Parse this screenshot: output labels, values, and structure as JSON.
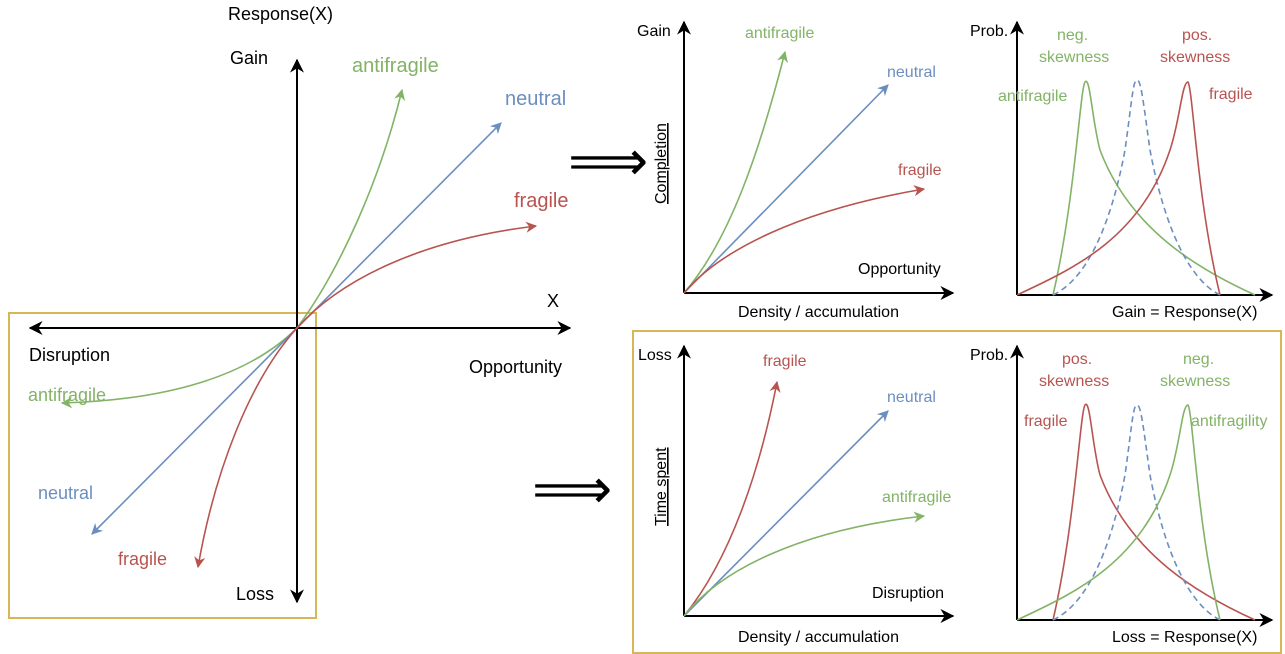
{
  "colors": {
    "antifragile": "#82b366",
    "neutral": "#6c8ebf",
    "fragile": "#b85450",
    "box": "#d6b656",
    "axis": "#000000"
  },
  "main_plot": {
    "y_title": "Response(X)",
    "gain": "Gain",
    "loss": "Loss",
    "x_axis": "X",
    "opportunity": "Opportunity",
    "disruption": "Disruption",
    "upper_labels": {
      "antifragile": "antifragile",
      "neutral": "neutral",
      "fragile": "fragile"
    },
    "lower_labels": {
      "antifragile": "antifragile",
      "neutral": "neutral",
      "fragile": "fragile"
    }
  },
  "implies_symbol": "⟹",
  "top_left_panel": {
    "y_axis": "Gain",
    "y_title": "Completion",
    "x_axis": "Density / accumulation",
    "regime": "Opportunity",
    "labels": {
      "antifragile": "antifragile",
      "neutral": "neutral",
      "fragile": "fragile"
    }
  },
  "top_right_panel": {
    "y_axis": "Prob.",
    "x_axis": "Gain = Response(X)",
    "neg_skew": [
      "neg.",
      "skewness"
    ],
    "pos_skew": [
      "pos.",
      "skewness"
    ],
    "left_label": "antifragile",
    "right_label": "fragile"
  },
  "bottom_left_panel": {
    "y_axis": "Loss",
    "y_title": "Time spent",
    "x_axis": "Density / accumulation",
    "regime": "Disruption",
    "labels": {
      "fragile": "fragile",
      "neutral": "neutral",
      "antifragile": "antifragile"
    }
  },
  "bottom_right_panel": {
    "y_axis": "Prob.",
    "x_axis": "Loss = Response(X)",
    "pos_skew": [
      "pos.",
      "skewness"
    ],
    "neg_skew": [
      "neg.",
      "skewness"
    ],
    "left_label": "fragile",
    "right_label": "antifragility"
  }
}
